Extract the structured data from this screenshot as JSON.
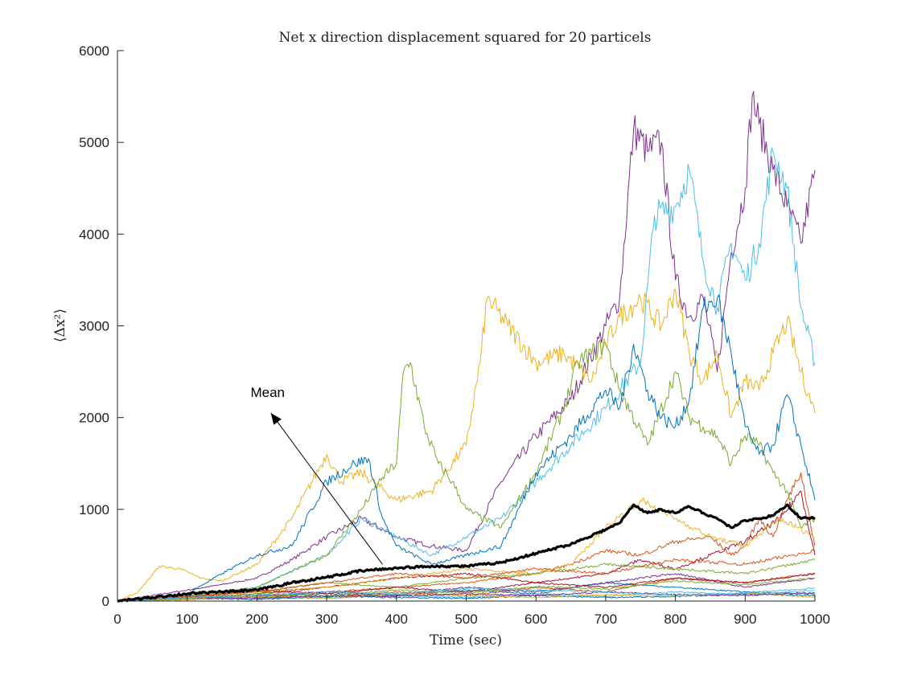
{
  "chart_data": {
    "type": "line",
    "title": "Net x direction displacement squared for 20 particels",
    "xlabel": "Time (sec)",
    "ylabel": "⟨Δx²⟩",
    "xlim": [
      0,
      1000
    ],
    "ylim": [
      0,
      6000
    ],
    "xticks": [
      0,
      100,
      200,
      300,
      400,
      500,
      600,
      700,
      800,
      900,
      1000
    ],
    "yticks": [
      0,
      1000,
      2000,
      3000,
      4000,
      5000,
      6000
    ],
    "grid": false,
    "legend": "none",
    "annotations": [
      {
        "text": "Mean",
        "arrow_from": [
          380,
          400
        ],
        "arrow_to": [
          220,
          2050
        ]
      }
    ],
    "series": [
      {
        "color": "#7E2F8E",
        "x": [
          0,
          50,
          100,
          150,
          200,
          250,
          300,
          350,
          400,
          450,
          500,
          550,
          600,
          650,
          700,
          720,
          740,
          760,
          780,
          800,
          820,
          840,
          860,
          880,
          900,
          910,
          920,
          940,
          960,
          980,
          1000
        ],
        "y": [
          0,
          60,
          120,
          180,
          250,
          450,
          700,
          900,
          700,
          600,
          550,
          1300,
          1800,
          2200,
          3000,
          3300,
          5150,
          4900,
          5000,
          3500,
          3100,
          3300,
          2500,
          3800,
          4500,
          5500,
          5200,
          4700,
          4300,
          3900,
          4700
        ]
      },
      {
        "color": "#4DBEEE",
        "x": [
          0,
          100,
          200,
          300,
          350,
          400,
          450,
          500,
          550,
          600,
          650,
          700,
          750,
          770,
          800,
          820,
          840,
          860,
          880,
          900,
          920,
          940,
          960,
          980,
          1000
        ],
        "y": [
          0,
          60,
          150,
          500,
          900,
          700,
          500,
          700,
          900,
          1300,
          1700,
          2100,
          2600,
          4200,
          4300,
          4700,
          3700,
          3200,
          3900,
          3500,
          3900,
          4900,
          4500,
          3200,
          2600
        ]
      },
      {
        "color": "#EDB120",
        "x": [
          0,
          30,
          60,
          90,
          120,
          150,
          200,
          250,
          300,
          320,
          350,
          400,
          450,
          500,
          520,
          530,
          560,
          600,
          640,
          680,
          700,
          720,
          750,
          780,
          800,
          820,
          840,
          860,
          880,
          900,
          920,
          940,
          960,
          980,
          1000
        ],
        "y": [
          0,
          100,
          380,
          350,
          250,
          220,
          400,
          900,
          1600,
          1300,
          1400,
          1100,
          1200,
          1700,
          2600,
          3300,
          3000,
          2600,
          2700,
          2400,
          2800,
          3100,
          3300,
          3000,
          3400,
          2700,
          2400,
          2700,
          2000,
          2400,
          2300,
          2700,
          3050,
          2500,
          2050
        ]
      },
      {
        "color": "#77AC30",
        "x": [
          0,
          100,
          200,
          300,
          350,
          380,
          400,
          410,
          420,
          440,
          460,
          480,
          500,
          550,
          600,
          640,
          660,
          700,
          720,
          760,
          800,
          820,
          840,
          860,
          880,
          900,
          920,
          940,
          960,
          980,
          1000
        ],
        "y": [
          0,
          40,
          150,
          500,
          1000,
          1350,
          1500,
          2500,
          2600,
          1900,
          1500,
          1300,
          1000,
          800,
          1400,
          2100,
          2600,
          2800,
          2300,
          1700,
          2500,
          2000,
          1900,
          1800,
          1500,
          1800,
          1700,
          1400,
          1200,
          800,
          900
        ]
      },
      {
        "color": "#0072BD",
        "x": [
          0,
          100,
          150,
          200,
          250,
          300,
          340,
          360,
          380,
          400,
          450,
          500,
          550,
          600,
          650,
          700,
          720,
          740,
          760,
          780,
          800,
          820,
          840,
          860,
          880,
          900,
          920,
          940,
          960,
          980,
          1000
        ],
        "y": [
          0,
          80,
          300,
          500,
          600,
          1300,
          1500,
          1550,
          900,
          600,
          400,
          500,
          600,
          1400,
          1800,
          2300,
          2100,
          2800,
          2300,
          2000,
          1900,
          2200,
          3200,
          3300,
          2700,
          1900,
          1600,
          1700,
          2250,
          1700,
          1100
        ]
      },
      {
        "color": "#D95319",
        "x": [
          0,
          100,
          200,
          300,
          400,
          500,
          600,
          650,
          700,
          750,
          800,
          850,
          880,
          900,
          920,
          940,
          960,
          980,
          1000
        ],
        "y": [
          0,
          20,
          50,
          100,
          150,
          200,
          300,
          400,
          550,
          500,
          650,
          700,
          500,
          600,
          900,
          700,
          1100,
          1400,
          600
        ]
      },
      {
        "color": "#A2142F",
        "x": [
          0,
          100,
          200,
          300,
          400,
          500,
          600,
          700,
          750,
          800,
          850,
          900,
          950,
          980,
          1000
        ],
        "y": [
          0,
          30,
          80,
          150,
          250,
          300,
          200,
          300,
          450,
          350,
          500,
          650,
          900,
          1200,
          500
        ]
      },
      {
        "color": "#0072BD",
        "x": [
          0,
          100,
          200,
          300,
          400,
          500,
          600,
          700,
          800,
          900,
          1000
        ],
        "y": [
          0,
          50,
          40,
          80,
          60,
          120,
          80,
          200,
          150,
          100,
          80
        ]
      },
      {
        "color": "#D95319",
        "x": [
          0,
          100,
          200,
          300,
          400,
          500,
          600,
          700,
          800,
          900,
          1000
        ],
        "y": [
          0,
          20,
          60,
          40,
          100,
          60,
          150,
          100,
          250,
          200,
          300
        ]
      },
      {
        "color": "#EDB120",
        "x": [
          0,
          100,
          200,
          300,
          400,
          500,
          600,
          650,
          700,
          750,
          800,
          850,
          900,
          950,
          1000
        ],
        "y": [
          0,
          40,
          100,
          150,
          250,
          350,
          300,
          400,
          800,
          1100,
          900,
          700,
          600,
          900,
          700
        ]
      },
      {
        "color": "#7E2F8E",
        "x": [
          0,
          100,
          200,
          300,
          400,
          500,
          600,
          700,
          800,
          900,
          1000
        ],
        "y": [
          0,
          30,
          60,
          100,
          70,
          150,
          100,
          200,
          300,
          150,
          250
        ]
      },
      {
        "color": "#77AC30",
        "x": [
          0,
          100,
          200,
          300,
          400,
          500,
          600,
          700,
          800,
          900,
          1000
        ],
        "y": [
          0,
          60,
          100,
          200,
          150,
          250,
          300,
          400,
          350,
          300,
          450
        ]
      },
      {
        "color": "#4DBEEE",
        "x": [
          0,
          100,
          200,
          300,
          400,
          500,
          600,
          700,
          800,
          900,
          1000
        ],
        "y": [
          0,
          20,
          40,
          30,
          60,
          40,
          80,
          50,
          100,
          70,
          120
        ]
      },
      {
        "color": "#A2142F",
        "x": [
          0,
          100,
          200,
          300,
          400,
          500,
          600,
          700,
          800,
          900,
          1000
        ],
        "y": [
          0,
          40,
          120,
          80,
          150,
          100,
          200,
          150,
          250,
          200,
          300
        ]
      },
      {
        "color": "#0072BD",
        "x": [
          0,
          100,
          200,
          300,
          400,
          500,
          600,
          700,
          800,
          900,
          1000
        ],
        "y": [
          0,
          30,
          20,
          50,
          40,
          30,
          60,
          40,
          50,
          80,
          60
        ]
      },
      {
        "color": "#D95319",
        "x": [
          0,
          100,
          200,
          300,
          400,
          500,
          600,
          700,
          800,
          900,
          1000
        ],
        "y": [
          0,
          50,
          100,
          200,
          300,
          250,
          350,
          300,
          450,
          400,
          550
        ]
      },
      {
        "color": "#EDB120",
        "x": [
          0,
          100,
          200,
          300,
          400,
          500,
          600,
          700,
          800,
          900,
          1000
        ],
        "y": [
          0,
          20,
          50,
          30,
          80,
          60,
          40,
          70,
          50,
          90,
          40
        ]
      },
      {
        "color": "#7E2F8E",
        "x": [
          0,
          100,
          200,
          300,
          400,
          500,
          600,
          700,
          800,
          900,
          1000
        ],
        "y": [
          0,
          40,
          30,
          60,
          50,
          80,
          60,
          100,
          70,
          60,
          90
        ]
      },
      {
        "color": "#77AC30",
        "x": [
          0,
          100,
          200,
          300,
          400,
          500,
          600,
          700,
          800,
          900,
          1000
        ],
        "y": [
          0,
          30,
          80,
          60,
          120,
          90,
          160,
          130,
          220,
          180,
          250
        ]
      },
      {
        "color": "#4DBEEE",
        "x": [
          0,
          100,
          200,
          300,
          400,
          500,
          600,
          700,
          800,
          900,
          1000
        ],
        "y": [
          0,
          40,
          60,
          100,
          80,
          140,
          120,
          100,
          60,
          90,
          140
        ]
      },
      {
        "color": "#000000",
        "bold": true,
        "x": [
          0,
          50,
          100,
          150,
          200,
          250,
          300,
          350,
          400,
          450,
          500,
          550,
          600,
          650,
          700,
          720,
          740,
          760,
          780,
          800,
          820,
          840,
          860,
          880,
          900,
          920,
          940,
          960,
          980,
          1000
        ],
        "y": [
          0,
          40,
          80,
          100,
          120,
          200,
          260,
          330,
          360,
          380,
          380,
          420,
          520,
          620,
          780,
          850,
          1050,
          960,
          1000,
          960,
          1030,
          960,
          900,
          800,
          880,
          900,
          930,
          1050,
          900,
          910
        ]
      }
    ]
  }
}
